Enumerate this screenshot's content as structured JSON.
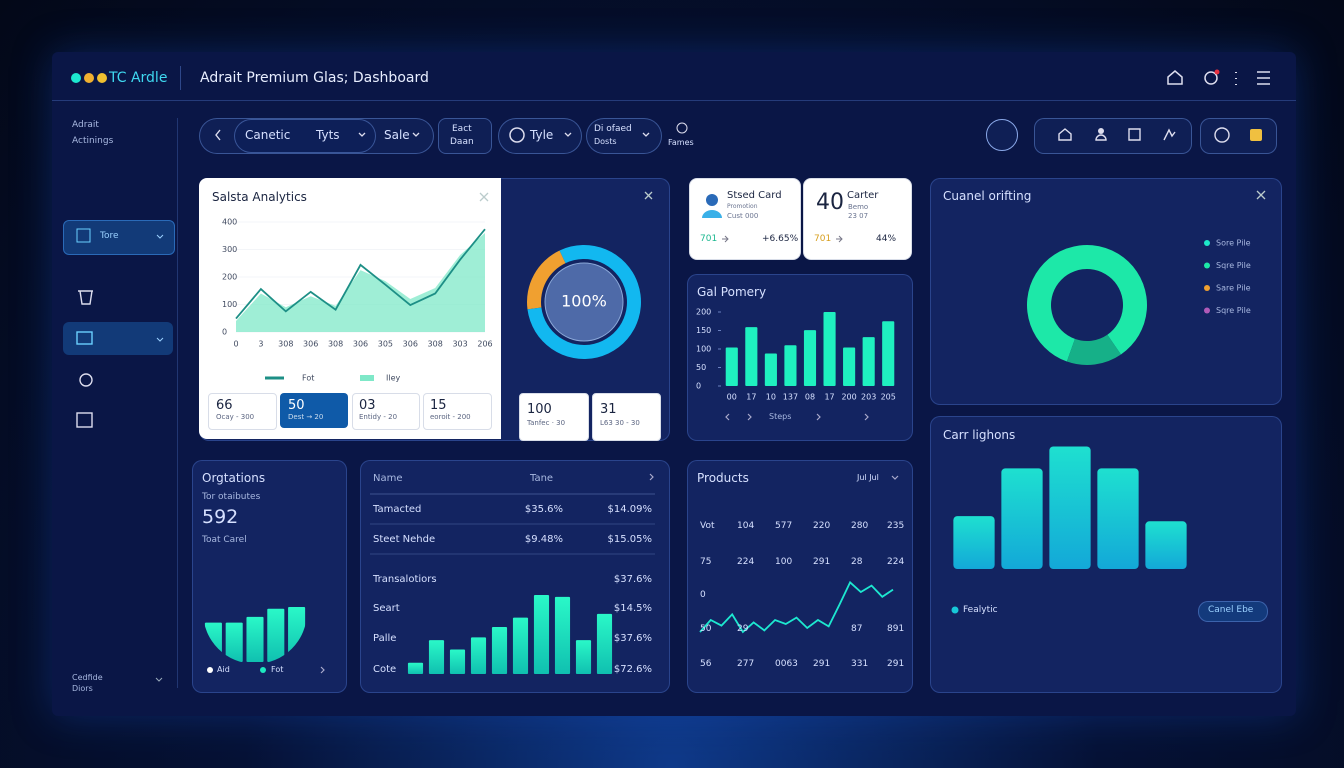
{
  "header": {
    "logo": "TC Ardle",
    "title": "Adrait Premium Glas; Dashboard"
  },
  "sidebar": {
    "heading_1": "Adrait",
    "heading_2": "Actinings",
    "active_item": "Tore",
    "footer_1": "Cedfide",
    "footer_2": "Diors"
  },
  "filters": {
    "first": "Canetic",
    "second": "Tyts",
    "third": "Sale",
    "fourth_1": "Eact",
    "fourth_2": "Daan",
    "fifth": "Tyle",
    "sixth_1": "Di ofaed",
    "sixth_2": "Dosts",
    "seventh": "Fames"
  },
  "sales_analytics": {
    "title": "Salsta Analytics",
    "chart": {
      "type": "line",
      "categories": [
        "0",
        "3",
        "308",
        "306",
        "308",
        "306",
        "305",
        "306",
        "308",
        "303",
        "206"
      ],
      "ylim": [
        0,
        400
      ],
      "yticks": [
        0,
        100,
        200,
        300,
        400
      ],
      "series": [
        {
          "name": "Fot",
          "color": "#1d8f86",
          "values": [
            49,
            156,
            75,
            146,
            81,
            244,
            172,
            98,
            140,
            263,
            374
          ]
        },
        {
          "name": "Iley",
          "color": "#7fe8c8",
          "values": [
            40,
            140,
            90,
            130,
            95,
            225,
            185,
            120,
            160,
            280,
            360
          ]
        }
      ]
    },
    "stats": [
      {
        "value": "66",
        "label": "Ocay - 300"
      },
      {
        "value": "50",
        "label": "Dest → 20"
      },
      {
        "value": "03",
        "label": "Entidy - 20"
      },
      {
        "value": "15",
        "label": "eoroit - 200"
      }
    ],
    "donut": {
      "type": "pie",
      "values": [
        20,
        80
      ],
      "colors": [
        "#f0a030",
        "#12b8f0"
      ],
      "center_label": "100%"
    },
    "boxes": [
      {
        "value": "100",
        "label": "Tanfec · 30"
      },
      {
        "value": "31",
        "label": "L63 30 - 30"
      }
    ]
  },
  "cards": [
    {
      "title": "Stsed Card",
      "line_1": "Promotion",
      "line_2": "Cust 000",
      "value": "701",
      "change": "+6.65%"
    },
    {
      "big": "40",
      "title": "Carter",
      "line_1": "Bemo",
      "line_2": "23 07",
      "value": "701",
      "change": "44%"
    }
  ],
  "gal_pomery": {
    "title": "Gal Pomery",
    "type": "bar",
    "color": "#1ff0c0",
    "categories": [
      "00",
      "17",
      "10",
      "137",
      "08",
      "17",
      "200",
      "203",
      "205"
    ],
    "values": [
      104,
      159,
      88,
      110,
      151,
      200,
      104,
      132,
      175
    ],
    "ylim": [
      0,
      200
    ],
    "yticks": [
      0,
      50,
      100,
      150,
      200
    ],
    "footer": "Steps"
  },
  "cuanel": {
    "title": "Cuanel orifting",
    "type": "pie",
    "values": [
      85,
      15
    ],
    "colors": [
      "#1de8a8",
      "#16b088"
    ],
    "legend": [
      {
        "name": "Sore Pile",
        "color": "#1de8c8"
      },
      {
        "name": "Sqre Pile",
        "color": "#1de8a8"
      },
      {
        "name": "Sare Pile",
        "color": "#f0a030"
      },
      {
        "name": "Sqre Pile",
        "color": "#b05ab8"
      }
    ]
  },
  "carr": {
    "title": "Carr lighons",
    "type": "bar",
    "color": "#17c8d8",
    "values": [
      41,
      78,
      95,
      78,
      37
    ],
    "legend": "Fealytic",
    "button": "Canel Ebe"
  },
  "orgtations": {
    "title": "Orgtations",
    "subtitle": "Tor otaibutes",
    "value": "592",
    "caption": "Toat Carel",
    "type": "bar",
    "color": "#1de8c0",
    "values": [
      48,
      48,
      55,
      65,
      67
    ],
    "legend": [
      "Aid",
      "Fot"
    ]
  },
  "table": {
    "header": [
      "Name",
      "Tane"
    ],
    "rows": [
      [
        "Tamacted",
        "$35.6%",
        "$14.09%"
      ],
      [
        "Steet Nehde",
        "$9.48%",
        "$15.05%"
      ],
      [
        "Transalotiors",
        "$37.6%"
      ],
      [
        "Seart",
        "$14.5%"
      ],
      [
        "Palle",
        "$37.6%"
      ],
      [
        "Cote",
        "$72.6%"
      ]
    ],
    "chart": {
      "type": "bar",
      "color": "#1de8c0",
      "values": [
        12,
        36,
        26,
        39,
        50,
        60,
        84,
        82,
        36,
        64
      ]
    }
  },
  "products": {
    "title": "Products",
    "filter": "Jul Jul",
    "rows": [
      [
        "Vot",
        "104",
        "577",
        "220",
        "280",
        "235"
      ],
      [
        "75",
        "224",
        "100",
        "291",
        "28",
        "224"
      ],
      [
        "0",
        null,
        null,
        null,
        null,
        null
      ],
      [
        "50",
        "29",
        null,
        null,
        "87",
        "891"
      ],
      [
        "56",
        "277",
        "0063",
        "291",
        "331",
        "291"
      ]
    ],
    "chart": {
      "type": "line",
      "color": "#1de8d0",
      "ylim": [
        0,
        100
      ],
      "values": [
        10,
        25,
        18,
        32,
        10,
        22,
        12,
        25,
        20,
        28,
        15,
        25,
        17,
        44,
        72,
        60,
        68,
        54,
        63
      ]
    }
  }
}
